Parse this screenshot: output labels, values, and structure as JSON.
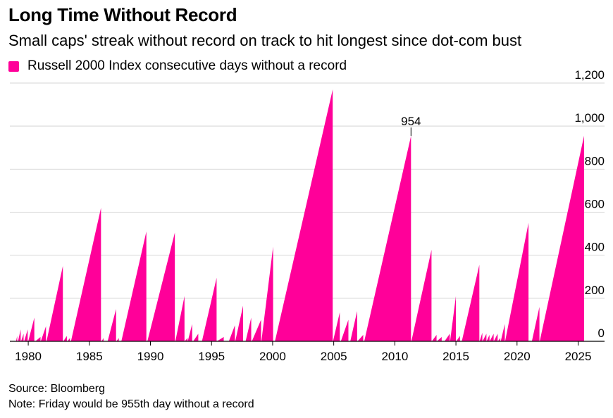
{
  "header": {
    "title": "Long Time Without Record",
    "subtitle": "Small caps' streak without record on track to hit longest since dot-com bust"
  },
  "legend": {
    "label": "Russell 2000 Index consecutive days without a record",
    "color": "#ff0099"
  },
  "footer": {
    "source": "Source: Bloomberg",
    "note": "Note: Friday would be 955th day without a record"
  },
  "chart_data": {
    "type": "area",
    "series": [
      {
        "name": "Russell 2000 Index consecutive days without a record",
        "color": "#ff0099",
        "peaks": [
          {
            "start": "1979-01-01",
            "end": "1979-02-05",
            "value": 25
          },
          {
            "start": "1979-03-01",
            "end": "1979-05-20",
            "value": 55
          },
          {
            "start": "1979-06-01",
            "end": "1979-08-15",
            "value": 35
          },
          {
            "start": "1979-09-01",
            "end": "1979-12-15",
            "value": 55
          },
          {
            "start": "1980-01-01",
            "end": "1980-07-01",
            "value": 110
          },
          {
            "start": "1980-08-01",
            "end": "1981-01-01",
            "value": 20
          },
          {
            "start": "1981-01-10",
            "end": "1981-06-15",
            "value": 70
          },
          {
            "start": "1981-07-01",
            "end": "1982-11-01",
            "value": 350
          },
          {
            "start": "1982-11-15",
            "end": "1983-03-01",
            "value": 25
          },
          {
            "start": "1983-03-15",
            "end": "1983-06-01",
            "value": 15
          },
          {
            "start": "1983-07-01",
            "end": "1985-12-15",
            "value": 620
          },
          {
            "start": "1986-01-01",
            "end": "1986-03-01",
            "value": 15
          },
          {
            "start": "1986-07-01",
            "end": "1987-03-10",
            "value": 150
          },
          {
            "start": "1987-03-20",
            "end": "1987-06-01",
            "value": 15
          },
          {
            "start": "1987-08-15",
            "end": "1989-09-01",
            "value": 510
          },
          {
            "start": "1989-10-01",
            "end": "1991-12-31",
            "value": 505
          },
          {
            "start": "1992-01-15",
            "end": "1992-10-15",
            "value": 210
          },
          {
            "start": "1992-10-20",
            "end": "1993-01-15",
            "value": 15
          },
          {
            "start": "1993-01-20",
            "end": "1993-06-01",
            "value": 80
          },
          {
            "start": "1993-07-01",
            "end": "1993-12-01",
            "value": 35
          },
          {
            "start": "1994-03-20",
            "end": "1995-06-01",
            "value": 295
          },
          {
            "start": "1995-06-10",
            "end": "1995-12-31",
            "value": 20
          },
          {
            "start": "1996-06-01",
            "end": "1996-12-01",
            "value": 75
          },
          {
            "start": "1996-12-10",
            "end": "1997-08-01",
            "value": 165
          },
          {
            "start": "1997-10-15",
            "end": "1998-04-01",
            "value": 110
          },
          {
            "start": "1998-04-20",
            "end": "1999-01-20",
            "value": 100
          },
          {
            "start": "1999-01-30",
            "end": "2000-01-15",
            "value": 440
          },
          {
            "start": "2000-03-10",
            "end": "2004-12-01",
            "value": 1170
          },
          {
            "start": "2004-12-10",
            "end": "2005-07-01",
            "value": 135
          },
          {
            "start": "2005-08-01",
            "end": "2006-03-15",
            "value": 100
          },
          {
            "start": "2006-05-10",
            "end": "2006-12-01",
            "value": 140
          },
          {
            "start": "2006-12-10",
            "end": "2007-06-01",
            "value": 30
          },
          {
            "start": "2007-07-01",
            "end": "2011-04-29",
            "value": 954
          },
          {
            "start": "2011-05-10",
            "end": "2013-01-01",
            "value": 425
          },
          {
            "start": "2013-01-10",
            "end": "2013-06-01",
            "value": 30
          },
          {
            "start": "2013-06-10",
            "end": "2013-11-01",
            "value": 20
          },
          {
            "start": "2014-01-25",
            "end": "2014-07-01",
            "value": 35
          },
          {
            "start": "2014-07-10",
            "end": "2014-12-31",
            "value": 210
          },
          {
            "start": "2015-01-10",
            "end": "2015-05-01",
            "value": 25
          },
          {
            "start": "2015-06-25",
            "end": "2016-12-01",
            "value": 355
          },
          {
            "start": "2016-12-10",
            "end": "2017-03-01",
            "value": 40
          },
          {
            "start": "2017-03-05",
            "end": "2017-07-01",
            "value": 35
          },
          {
            "start": "2017-07-05",
            "end": "2017-10-01",
            "value": 30
          },
          {
            "start": "2017-10-05",
            "end": "2018-02-01",
            "value": 35
          },
          {
            "start": "2018-02-05",
            "end": "2018-06-01",
            "value": 35
          },
          {
            "start": "2018-06-05",
            "end": "2018-08-20",
            "value": 15
          },
          {
            "start": "2018-09-01",
            "end": "2019-01-01",
            "value": 80
          },
          {
            "start": "2019-01-10",
            "end": "2020-12-10",
            "value": 550
          },
          {
            "start": "2021-03-20",
            "end": "2021-11-01",
            "value": 160
          },
          {
            "start": "2021-11-10",
            "end": "2025-06-27",
            "value": 955
          }
        ]
      }
    ],
    "annotations": [
      {
        "text": "954",
        "x": "2011-04-29",
        "y": 954
      }
    ],
    "xlabel": "",
    "ylabel": "",
    "xlim": [
      "1978-07-01",
      "2027-03-01"
    ],
    "ylim": [
      0,
      1200
    ],
    "xticks": [
      "1980",
      "1985",
      "1990",
      "1995",
      "2000",
      "2005",
      "2010",
      "2015",
      "2020",
      "2025"
    ],
    "yticks": [
      {
        "value": 0,
        "label": "0"
      },
      {
        "value": 200,
        "label": "200"
      },
      {
        "value": 400,
        "label": "400"
      },
      {
        "value": 600,
        "label": "600"
      },
      {
        "value": 800,
        "label": "800"
      },
      {
        "value": 1000,
        "label": "1,000"
      },
      {
        "value": 1200,
        "label": "1,200"
      }
    ],
    "y_axis_side": "right",
    "grid": true,
    "legend_position": "top-left"
  }
}
